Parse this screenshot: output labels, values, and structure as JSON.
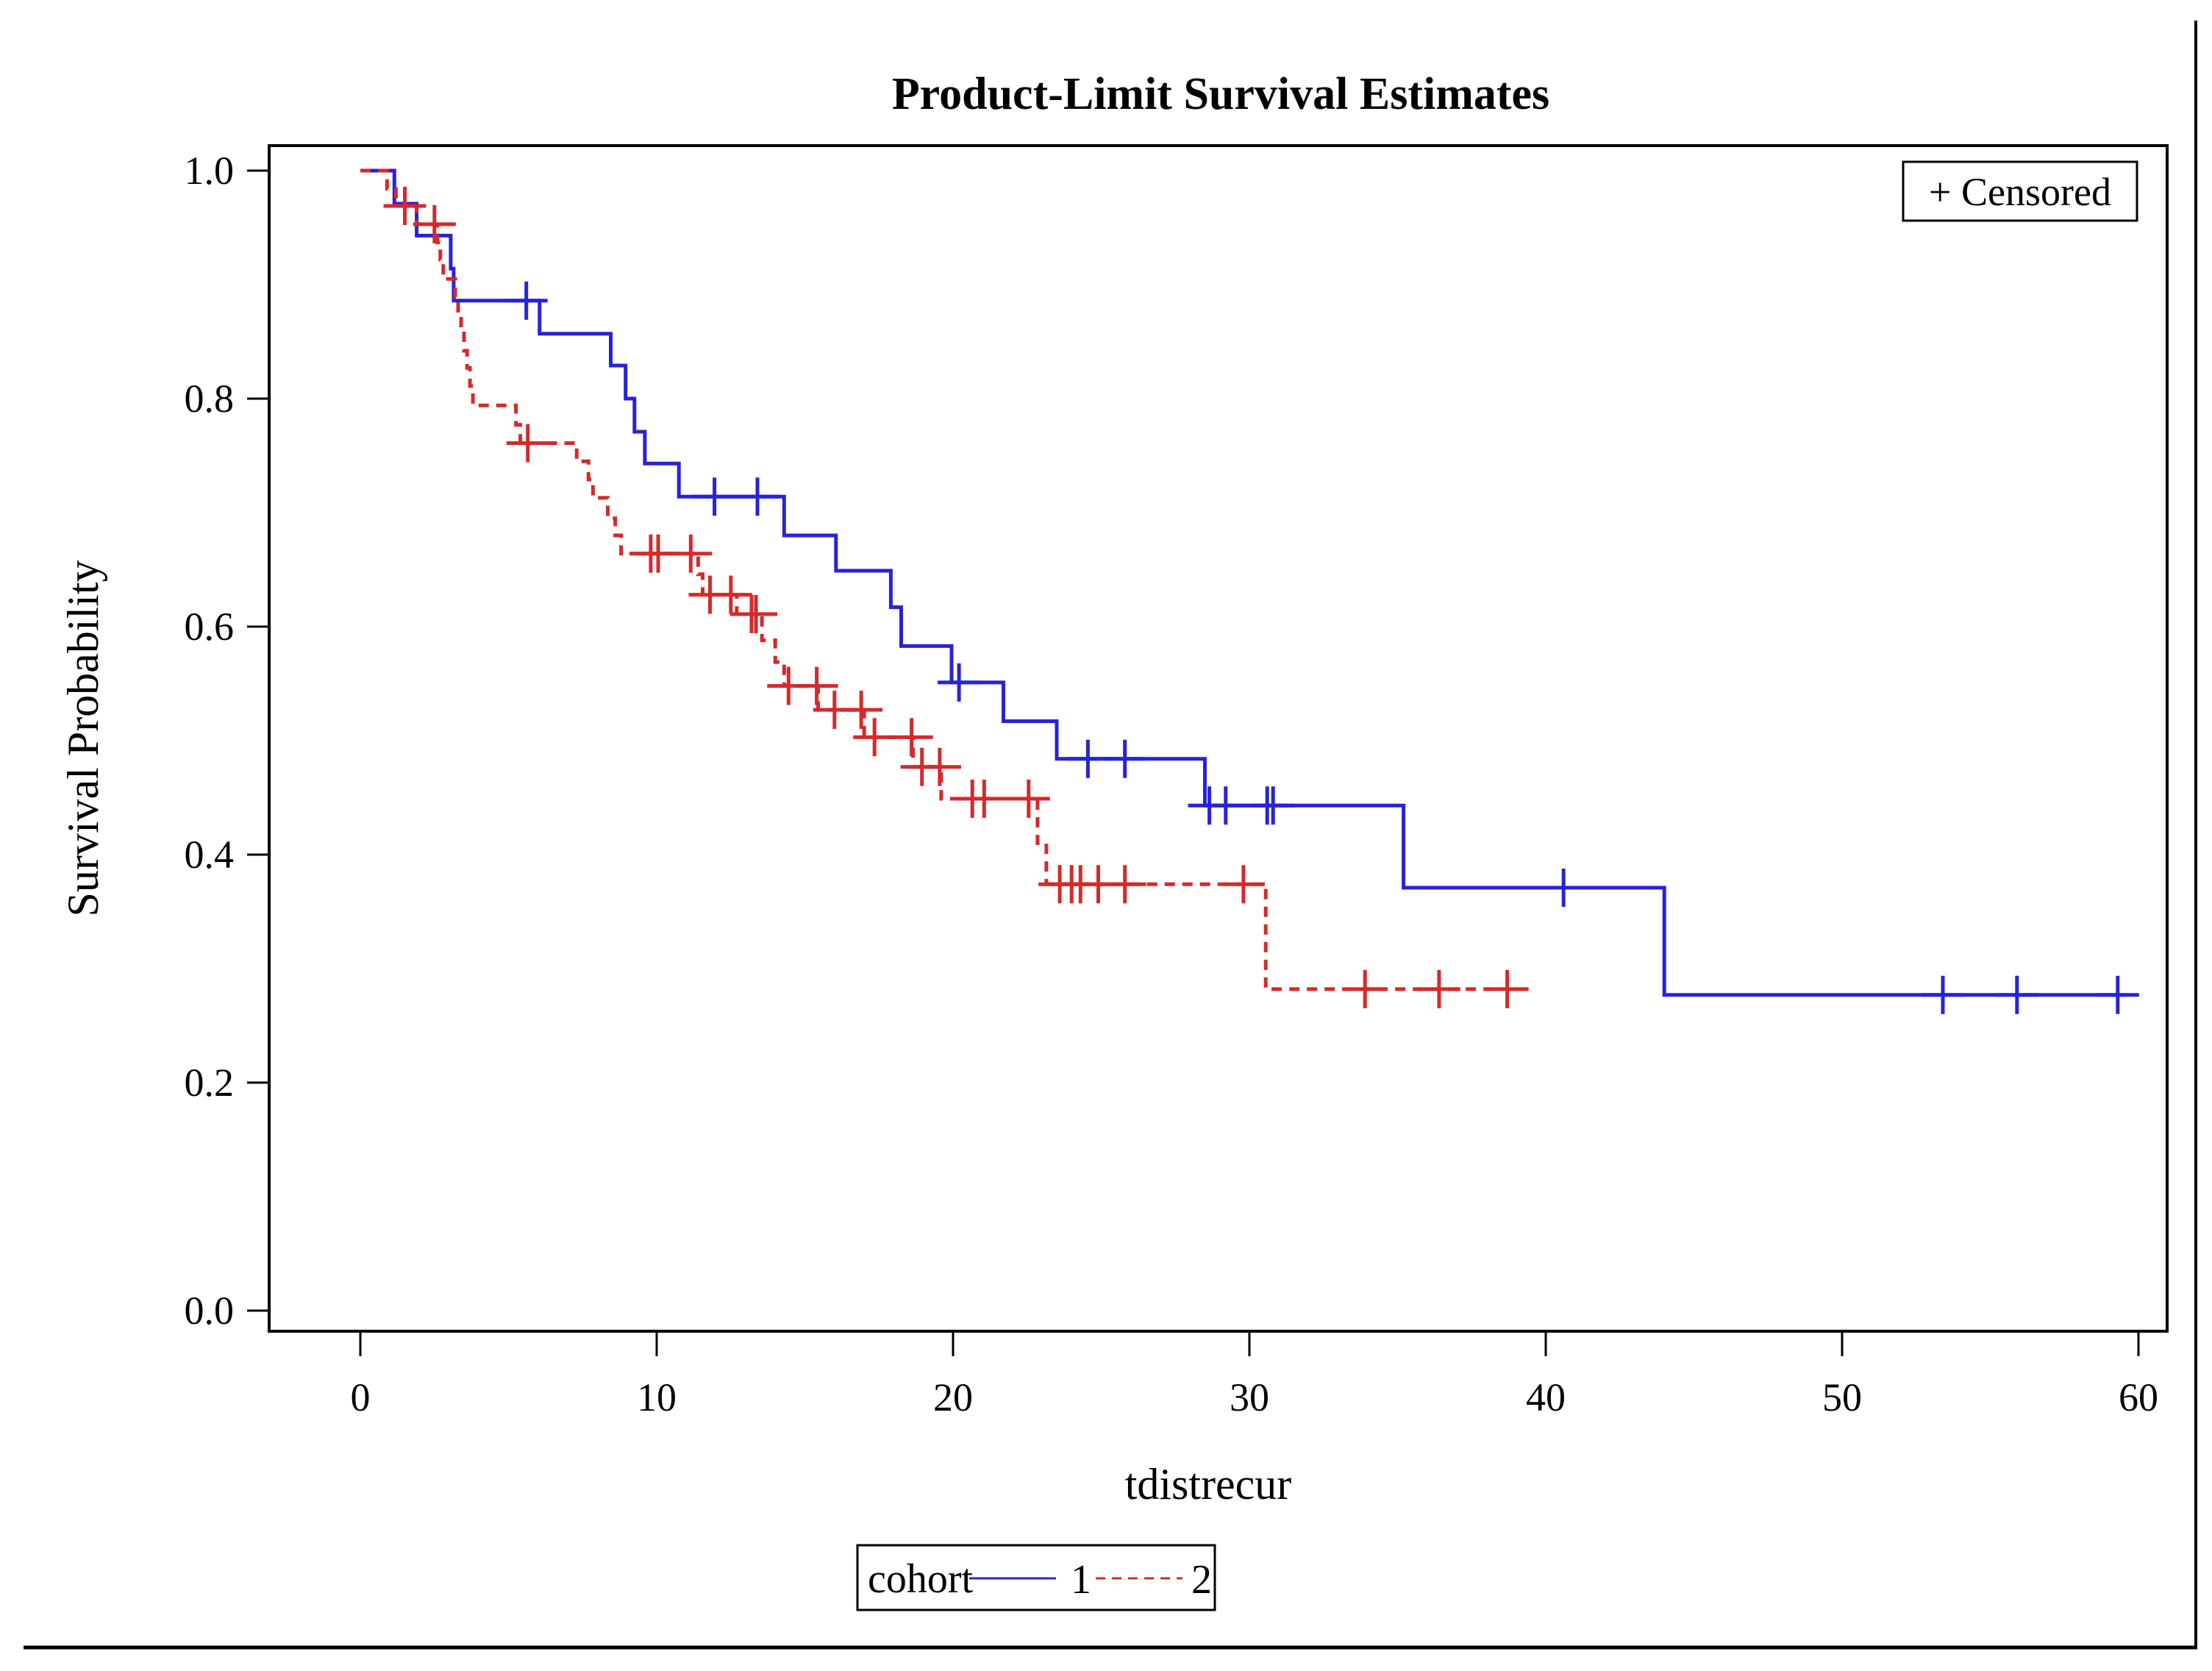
{
  "title": "Product-Limit Survival Estimates",
  "censored_box": {
    "label": "+ Censored"
  },
  "axes": {
    "x": {
      "label": "tdistrecur",
      "ticks": [
        "0",
        "10",
        "20",
        "30",
        "40",
        "50",
        "60"
      ],
      "tick_values": [
        0,
        10,
        20,
        30,
        40,
        50,
        60
      ],
      "range": [
        0,
        60
      ]
    },
    "y": {
      "label": "Survival Probability",
      "ticks": [
        "1.0",
        "0.8",
        "0.6",
        "0.4",
        "0.2",
        "0.0"
      ],
      "tick_values": [
        1.0,
        0.8,
        0.6,
        0.4,
        0.2,
        0.0
      ],
      "range": [
        0,
        1
      ]
    }
  },
  "legend": {
    "title": "cohort",
    "series": [
      {
        "label": "1",
        "color": "#2823D6",
        "style": "solid"
      },
      {
        "label": "2",
        "color": "#D42A2A",
        "style": "dashed"
      }
    ]
  },
  "colors": {
    "cohort1": "#2823D6",
    "cohort2": "#D42A2A",
    "frame": "#000000",
    "background": "#ffffff"
  },
  "chart_data": {
    "type": "line",
    "subtype": "kaplan-meier-step",
    "title": "Product-Limit Survival Estimates",
    "xlabel": "tdistrecur",
    "ylabel": "Survival Probability",
    "xlim": [
      0,
      60
    ],
    "ylim": [
      0.0,
      1.0
    ],
    "grid": false,
    "legend_position": "bottom",
    "censor_marker": "+",
    "series": [
      {
        "name": "cohort 1",
        "color": "#2823D6",
        "line": "solid",
        "steps": [
          [
            0,
            1.0
          ],
          [
            1.15,
            0.971
          ],
          [
            1.9,
            0.943
          ],
          [
            3.05,
            0.914
          ],
          [
            3.15,
            0.886
          ],
          [
            6.05,
            0.857
          ],
          [
            8.45,
            0.829
          ],
          [
            8.95,
            0.8
          ],
          [
            9.25,
            0.771
          ],
          [
            9.6,
            0.743
          ],
          [
            10.75,
            0.714
          ],
          [
            14.3,
            0.68
          ],
          [
            16.05,
            0.649
          ],
          [
            17.9,
            0.617
          ],
          [
            18.25,
            0.583
          ],
          [
            19.95,
            0.551
          ],
          [
            21.7,
            0.517
          ],
          [
            23.5,
            0.484
          ],
          [
            28.5,
            0.443
          ],
          [
            35.2,
            0.371
          ],
          [
            44.0,
            0.277
          ]
        ],
        "end_time": 59.5,
        "censored_times": [
          5.6,
          11.95,
          13.4,
          20.2,
          24.55,
          25.8,
          28.65,
          29.2,
          30.6,
          30.8,
          40.6,
          53.4,
          55.9,
          59.3
        ]
      },
      {
        "name": "cohort 2",
        "color": "#D42A2A",
        "line": "dashed",
        "steps": [
          [
            0,
            1.0
          ],
          [
            0.9,
            0.984
          ],
          [
            1.2,
            0.969
          ],
          [
            1.9,
            0.953
          ],
          [
            2.6,
            0.937
          ],
          [
            2.7,
            0.922
          ],
          [
            2.8,
            0.905
          ],
          [
            3.2,
            0.889
          ],
          [
            3.3,
            0.874
          ],
          [
            3.4,
            0.859
          ],
          [
            3.5,
            0.842
          ],
          [
            3.6,
            0.827
          ],
          [
            3.7,
            0.811
          ],
          [
            3.8,
            0.794
          ],
          [
            5.25,
            0.777
          ],
          [
            5.4,
            0.761
          ],
          [
            7.3,
            0.745
          ],
          [
            7.7,
            0.729
          ],
          [
            7.85,
            0.713
          ],
          [
            8.35,
            0.695
          ],
          [
            8.6,
            0.68
          ],
          [
            8.8,
            0.664
          ],
          [
            11.4,
            0.646
          ],
          [
            11.55,
            0.628
          ],
          [
            12.7,
            0.611
          ],
          [
            13.55,
            0.588
          ],
          [
            14.0,
            0.569
          ],
          [
            14.3,
            0.548
          ],
          [
            15.45,
            0.527
          ],
          [
            17.0,
            0.503
          ],
          [
            18.65,
            0.477
          ],
          [
            19.6,
            0.449
          ],
          [
            22.85,
            0.41
          ],
          [
            23.15,
            0.374
          ],
          [
            30.55,
            0.282
          ]
        ],
        "end_time": 39.1,
        "censored_times": [
          1.5,
          2.5,
          5.65,
          9.8,
          10.05,
          11.15,
          11.8,
          12.5,
          13.2,
          13.35,
          14.45,
          15.4,
          16.0,
          16.9,
          17.35,
          18.6,
          18.95,
          19.55,
          20.65,
          21.05,
          22.55,
          23.6,
          24.0,
          24.3,
          24.9,
          25.8,
          29.8,
          33.9,
          36.4,
          38.7
        ]
      }
    ]
  }
}
